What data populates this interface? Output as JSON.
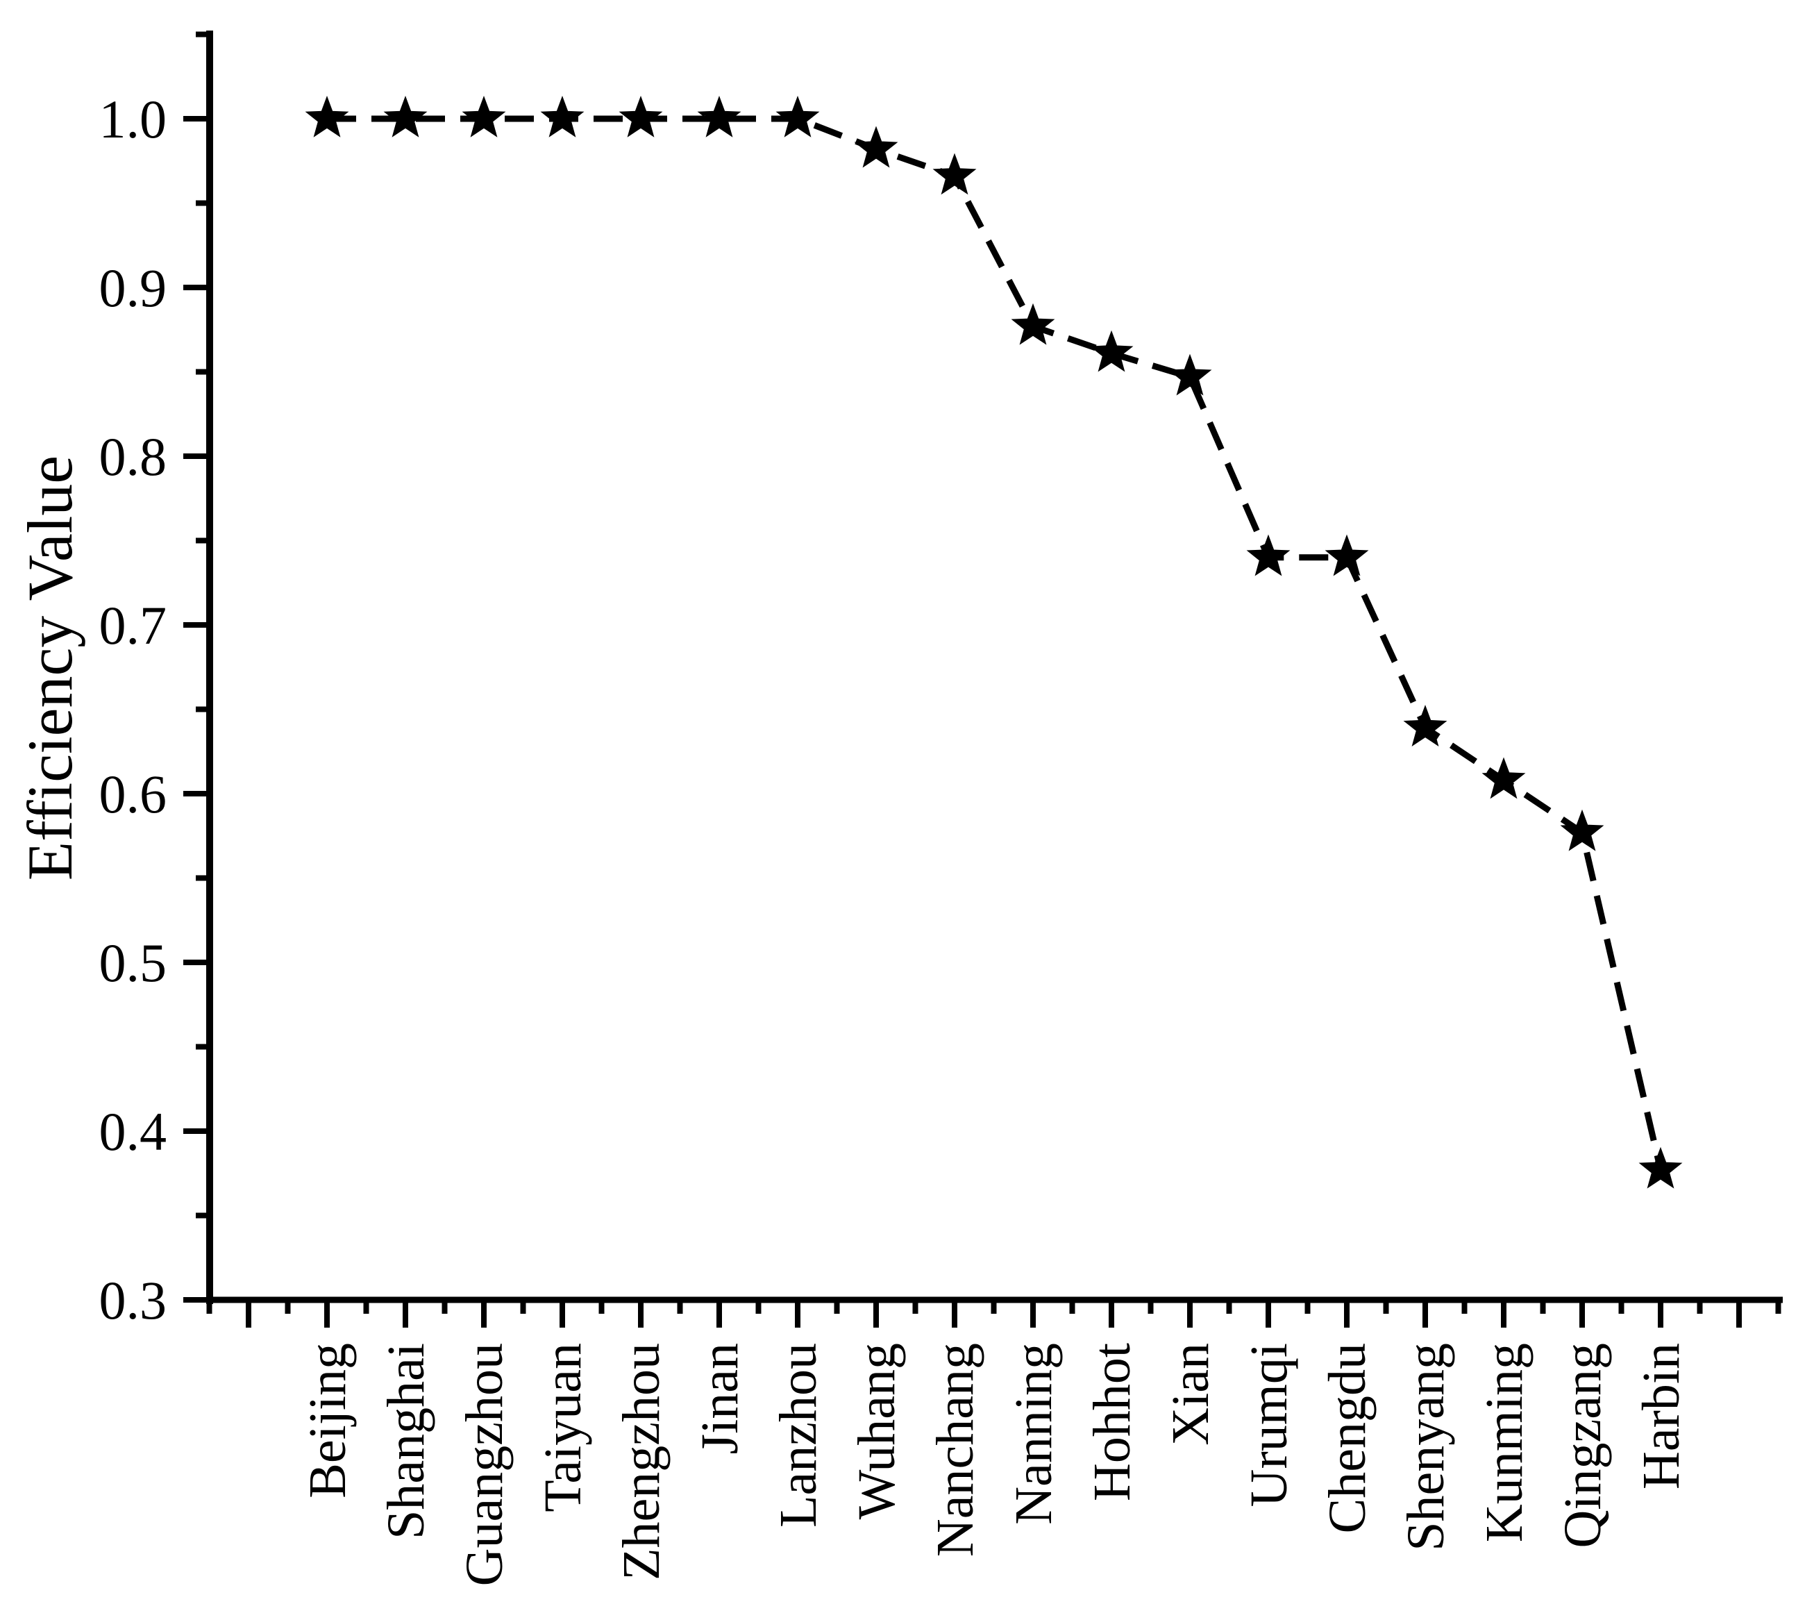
{
  "page": {
    "background_color": "#ffffff",
    "foreground_color": "#000000"
  },
  "chart_data": {
    "type": "line",
    "title": "",
    "xlabel": "",
    "ylabel": "Efficiency Value",
    "categories": [
      "Beijing",
      "Shanghai",
      "Guangzhou",
      "Taiyuan",
      "Zhengzhou",
      "Jinan",
      "Lanzhou",
      "Wuhang",
      "Nanchang",
      "Nanning",
      "Hohhot",
      "Xian",
      "Urumqi",
      "Chengdu",
      "Shenyang",
      "Kunming",
      "Qingzang",
      "Harbin"
    ],
    "series": [
      {
        "name": "Efficiency Value",
        "values": [
          1.0,
          1.0,
          1.0,
          1.0,
          1.0,
          1.0,
          1.0,
          0.982,
          0.966,
          0.877,
          0.861,
          0.847,
          0.74,
          0.74,
          0.639,
          0.608,
          0.577,
          0.377
        ]
      }
    ],
    "ylim": [
      0.3,
      1.052
    ],
    "y_major_ticks": [
      0.3,
      0.4,
      0.5,
      0.6,
      0.7,
      0.8,
      0.9,
      1.0
    ],
    "y_tick_labels": [
      "0.3",
      "0.4",
      "0.5",
      "0.6",
      "0.7",
      "0.8",
      "0.9",
      "1.0"
    ],
    "y_minor_ticks": [
      0.35,
      0.45,
      0.55,
      0.65,
      0.75,
      0.85,
      0.95,
      1.05
    ],
    "marker": "star",
    "marker_color": "#000000",
    "line_style": "dashed",
    "line_color": "#000000",
    "grid": false,
    "legend": "none"
  }
}
